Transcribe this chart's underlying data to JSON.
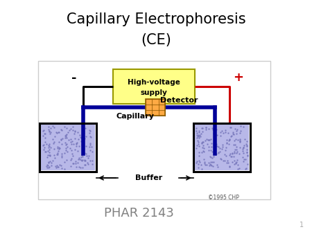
{
  "title_line1": "Capillary Electrophoresis",
  "title_line2": "(CE)",
  "subtitle": "PHAR 2143",
  "copyright": "©1995 CHP",
  "page_num": "1",
  "bg_color": "#ffffff",
  "title_color": "#000000",
  "subtitle_color": "#808080",
  "minus_label": "-",
  "plus_label": "+",
  "hv_label_line1": "High-voltage",
  "hv_label_line2": "supply",
  "detector_label": "Detector",
  "capillary_label": "Capillary",
  "buffer_label": "Buffer",
  "hv_box_color": "#ffff88",
  "hv_box_edge": "#999900",
  "detector_color": "#ffaa44",
  "capillary_color": "#000099",
  "wire_black": "#000000",
  "wire_red": "#cc0000",
  "buffer_fill": "#aaaaee",
  "vat_edge": "#000000"
}
